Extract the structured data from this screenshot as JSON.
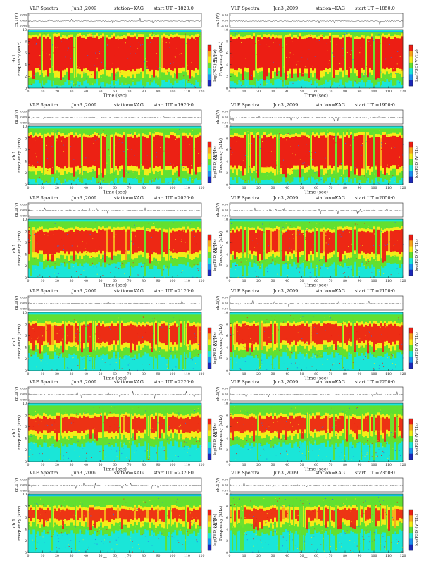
{
  "panel_header": {
    "prefix": "VLF Spectra",
    "date": "Jun3 ,2009",
    "station": "station=KAG",
    "start_label": "start  UT  ="
  },
  "chart_data": {
    "type": "heatmap",
    "trace_ylabel": "ch.1(V)",
    "trace_ticks": [
      "0.50",
      "0.00",
      "-0.50"
    ],
    "ylabel_top": "ch.1",
    "ylabel": "Frequency  (kHz)",
    "xlabel": "Time  (sec)",
    "colorbar_label": "log(PSD)(V²/Hz)",
    "xlim": [
      0,
      120
    ],
    "ylim": [
      0,
      10
    ],
    "x_ticks": [
      0,
      10,
      20,
      30,
      40,
      50,
      60,
      70,
      80,
      90,
      100,
      110,
      120
    ],
    "y_ticks": [
      0,
      2,
      4,
      6,
      8,
      10
    ],
    "panels": [
      {
        "start_ut": "1820:0",
        "red_low_khz": 3.2,
        "red_high_khz": 8.6,
        "intensity": 1.0
      },
      {
        "start_ut": "1850:0",
        "red_low_khz": 3.2,
        "red_high_khz": 8.6,
        "intensity": 1.0
      },
      {
        "start_ut": "1920:0",
        "red_low_khz": 3.0,
        "red_high_khz": 8.2,
        "intensity": 0.95
      },
      {
        "start_ut": "1950:0",
        "red_low_khz": 3.0,
        "red_high_khz": 8.2,
        "intensity": 0.95
      },
      {
        "start_ut": "2020:0",
        "red_low_khz": 4.3,
        "red_high_khz": 8.0,
        "intensity": 0.8
      },
      {
        "start_ut": "2050:0",
        "red_low_khz": 4.3,
        "red_high_khz": 8.0,
        "intensity": 0.8
      },
      {
        "start_ut": "2120:0",
        "red_low_khz": 4.8,
        "red_high_khz": 7.8,
        "intensity": 0.7
      },
      {
        "start_ut": "2150:0",
        "red_low_khz": 4.8,
        "red_high_khz": 7.8,
        "intensity": 0.7
      },
      {
        "start_ut": "2220:0",
        "red_low_khz": 5.2,
        "red_high_khz": 7.6,
        "intensity": 0.6
      },
      {
        "start_ut": "2250:0",
        "red_low_khz": 5.2,
        "red_high_khz": 7.6,
        "intensity": 0.6
      },
      {
        "start_ut": "2320:0",
        "red_low_khz": 5.6,
        "red_high_khz": 7.4,
        "intensity": 0.55
      },
      {
        "start_ut": "2350:0",
        "red_low_khz": 5.6,
        "red_high_khz": 7.4,
        "intensity": 0.55
      }
    ]
  }
}
